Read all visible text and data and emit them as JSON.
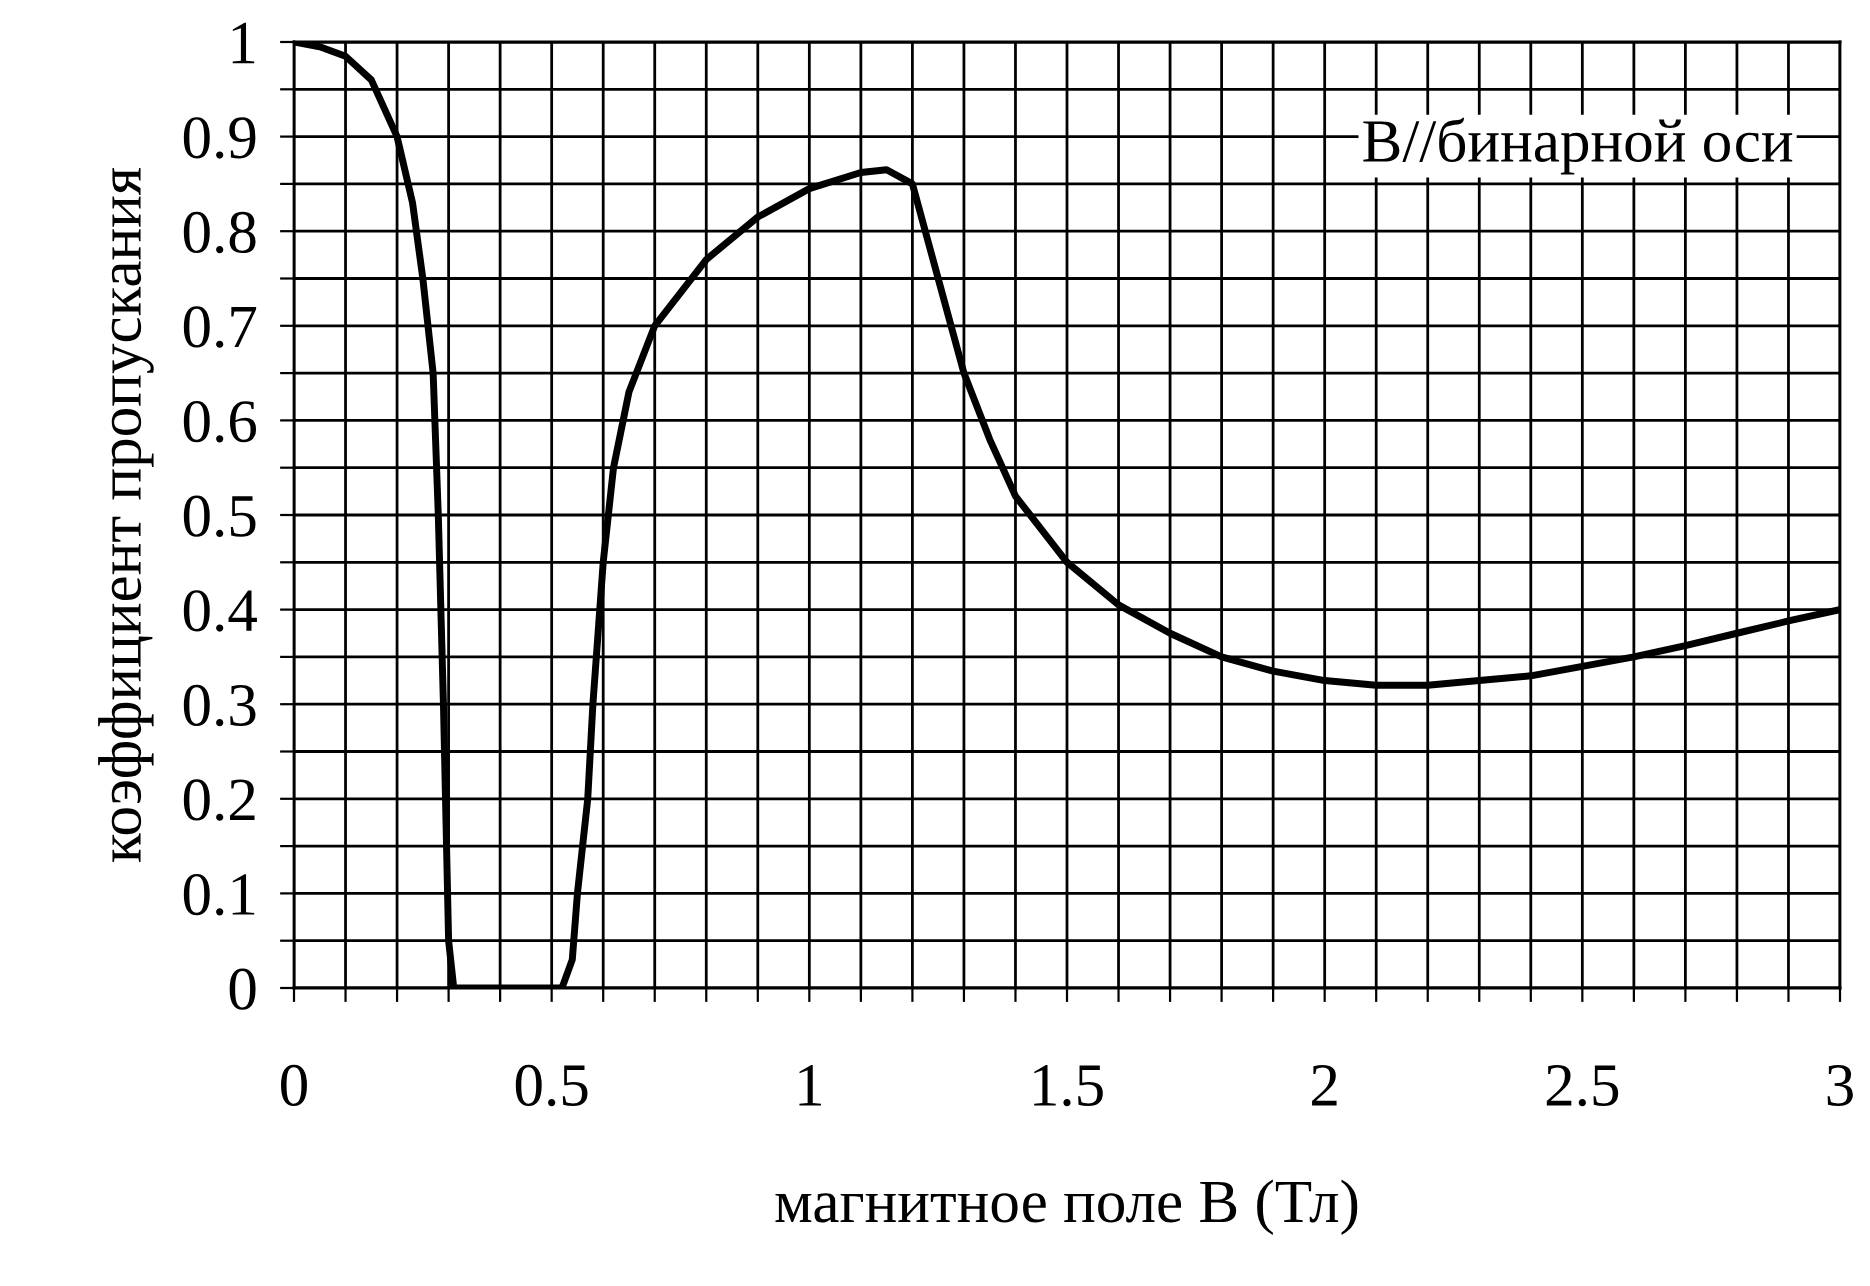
{
  "chart_data": {
    "type": "line",
    "xlabel": "магнитное поле B (Тл)",
    "ylabel": "коэффициент пропускания",
    "annotations": [
      "B//бинарной оси"
    ],
    "x": [
      0,
      0.05,
      0.1,
      0.15,
      0.2,
      0.23,
      0.25,
      0.27,
      0.28,
      0.29,
      0.3,
      0.31,
      0.4,
      0.52,
      0.54,
      0.55,
      0.57,
      0.58,
      0.6,
      0.62,
      0.65,
      0.7,
      0.8,
      0.9,
      1.0,
      1.1,
      1.15,
      1.2,
      1.25,
      1.3,
      1.35,
      1.4,
      1.5,
      1.6,
      1.7,
      1.8,
      1.9,
      2.0,
      2.1,
      2.2,
      2.3,
      2.4,
      2.5,
      2.6,
      2.7,
      2.8,
      2.9,
      3.0
    ],
    "series": [
      {
        "color": "#000000",
        "values": [
          1.0,
          0.995,
          0.985,
          0.96,
          0.9,
          0.83,
          0.75,
          0.65,
          0.5,
          0.3,
          0.05,
          0.0,
          0.0,
          0.0,
          0.03,
          0.1,
          0.2,
          0.3,
          0.45,
          0.55,
          0.63,
          0.7,
          0.77,
          0.815,
          0.845,
          0.862,
          0.865,
          0.85,
          0.75,
          0.65,
          0.58,
          0.52,
          0.45,
          0.405,
          0.375,
          0.35,
          0.335,
          0.325,
          0.32,
          0.32,
          0.325,
          0.33,
          0.34,
          0.35,
          0.362,
          0.375,
          0.388,
          0.4
        ]
      }
    ],
    "xlim": [
      0,
      3
    ],
    "ylim": [
      0,
      1
    ],
    "xticks": [
      0,
      {
        "value": 0.1,
        "label": null
      },
      {
        "value": 0.2,
        "label": null
      },
      {
        "value": 0.3,
        "label": null
      },
      {
        "value": 0.4,
        "label": null
      },
      0.5,
      {
        "value": 0.6,
        "label": null
      },
      {
        "value": 0.7,
        "label": null
      },
      {
        "value": 0.8,
        "label": null
      },
      {
        "value": 0.9,
        "label": null
      },
      1,
      {
        "value": 1.1,
        "label": null
      },
      {
        "value": 1.2,
        "label": null
      },
      {
        "value": 1.3,
        "label": null
      },
      {
        "value": 1.4,
        "label": null
      },
      1.5,
      {
        "value": 1.6,
        "label": null
      },
      {
        "value": 1.7,
        "label": null
      },
      {
        "value": 1.8,
        "label": null
      },
      {
        "value": 1.9,
        "label": null
      },
      2,
      {
        "value": 2.1,
        "label": null
      },
      {
        "value": 2.2,
        "label": null
      },
      {
        "value": 2.3,
        "label": null
      },
      {
        "value": 2.4,
        "label": null
      },
      2.5,
      {
        "value": 2.6,
        "label": null
      },
      {
        "value": 2.7,
        "label": null
      },
      {
        "value": 2.8,
        "label": null
      },
      {
        "value": 2.9,
        "label": null
      },
      3
    ],
    "yticks": [
      0,
      {
        "value": 0.05,
        "label": null
      },
      0.1,
      {
        "value": 0.15,
        "label": null
      },
      0.2,
      {
        "value": 0.25,
        "label": null
      },
      0.3,
      {
        "value": 0.35,
        "label": null
      },
      0.4,
      {
        "value": 0.45,
        "label": null
      },
      0.5,
      {
        "value": 0.55,
        "label": null
      },
      0.6,
      {
        "value": 0.65,
        "label": null
      },
      0.7,
      {
        "value": 0.75,
        "label": null
      },
      0.8,
      {
        "value": 0.85,
        "label": null
      },
      0.9,
      {
        "value": 0.95,
        "label": null
      },
      1
    ],
    "grid": true,
    "line_style": "solid",
    "marker": "none"
  }
}
